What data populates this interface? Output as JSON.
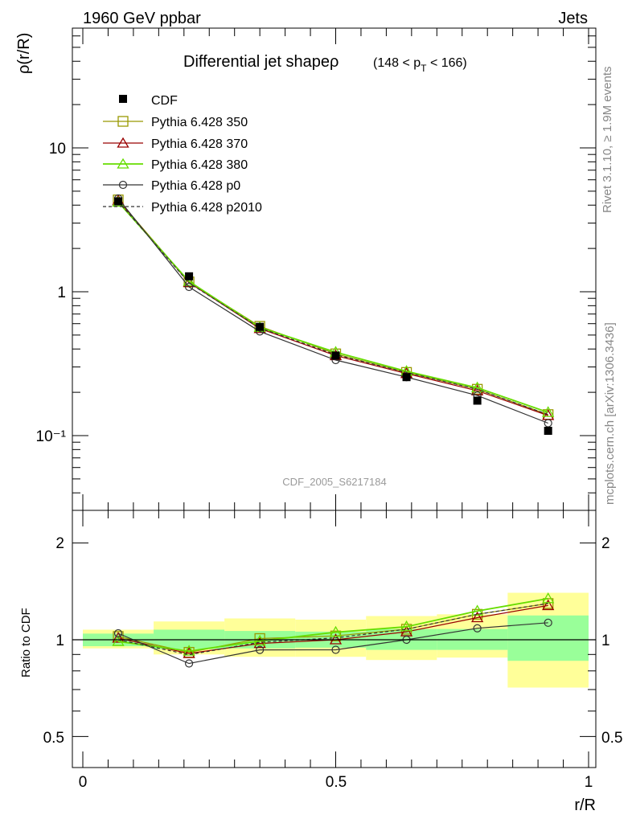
{
  "header": {
    "left": "1960 GeV ppbar",
    "right": "Jets"
  },
  "side_labels": {
    "rivet": "Rivet 3.1.10, ≥ 1.9M events",
    "mcplots": "mcplots.cern.ch [arXiv:1306.3436]"
  },
  "chart_data": {
    "type": "line",
    "title": "Differential jet shapeρ",
    "title_range": {
      "lo": "(148 < p",
      "sub": "T",
      "hi": " < 166)"
    },
    "watermark": "CDF_2005_S6217184",
    "xlabel": "r/R",
    "ylabel": "ρ(r/R)",
    "ratio_ylabel": "Ratio to CDF",
    "xlim": [
      0,
      1
    ],
    "ylim": [
      0.03,
      50
    ],
    "yscale": "log",
    "ratio_ylim": [
      0.4,
      2.3
    ],
    "ratio_yscale": "log",
    "x_ticks": [
      "0",
      "0.5",
      "1"
    ],
    "y_ticks": [
      "10⁻¹",
      "1",
      "10"
    ],
    "ratio_y_ticks": [
      "0.5",
      "1",
      "2"
    ],
    "x": [
      0.07,
      0.21,
      0.35,
      0.5,
      0.64,
      0.78,
      0.92
    ],
    "bin_edges": [
      0.0,
      0.14,
      0.28,
      0.42,
      0.56,
      0.7,
      0.84,
      1.0
    ],
    "data": {
      "name": "CDF",
      "values": [
        4.25,
        1.28,
        0.57,
        0.36,
        0.255,
        0.175,
        0.108
      ]
    },
    "series": [
      {
        "name": "Pythia 6.428 350",
        "color": "#999900",
        "marker": "square",
        "dash": false,
        "values": [
          4.35,
          1.17,
          0.575,
          0.37,
          0.275,
          0.21,
          0.14
        ]
      },
      {
        "name": "Pythia 6.428 370",
        "color": "#990000",
        "marker": "triangle",
        "dash": false,
        "values": [
          4.3,
          1.16,
          0.555,
          0.36,
          0.27,
          0.205,
          0.138
        ]
      },
      {
        "name": "Pythia 6.428 380",
        "color": "#66dd00",
        "marker": "triangle",
        "dash": false,
        "values": [
          4.2,
          1.18,
          0.565,
          0.38,
          0.28,
          0.215,
          0.145
        ]
      },
      {
        "name": "Pythia 6.428 p0",
        "color": "#333333",
        "marker": "circle",
        "dash": false,
        "values": [
          4.45,
          1.08,
          0.53,
          0.335,
          0.255,
          0.19,
          0.122
        ]
      },
      {
        "name": "Pythia 6.428 p2010",
        "color": "#333333",
        "marker": "none",
        "dash": true,
        "values": [
          4.25,
          1.15,
          0.56,
          0.365,
          0.275,
          0.21,
          0.14
        ]
      }
    ],
    "ratio_bands": {
      "inner": [
        [
          0.955,
          1.045
        ],
        [
          0.935,
          1.075
        ],
        [
          0.94,
          1.065
        ],
        [
          0.945,
          1.06
        ],
        [
          0.93,
          1.08
        ],
        [
          0.93,
          1.08
        ],
        [
          0.86,
          1.19
        ]
      ],
      "outer": [
        [
          0.94,
          1.075
        ],
        [
          0.9,
          1.14
        ],
        [
          0.885,
          1.165
        ],
        [
          0.885,
          1.155
        ],
        [
          0.865,
          1.185
        ],
        [
          0.88,
          1.2
        ],
        [
          0.71,
          1.4
        ]
      ]
    },
    "colors": {
      "inner_band": "#99ff99",
      "outer_band": "#ffff99"
    }
  }
}
